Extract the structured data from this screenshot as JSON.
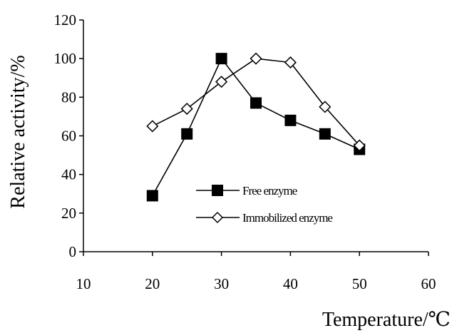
{
  "chart_data": {
    "type": "line",
    "xlabel": "Temperature/℃",
    "ylabel": "Relative activity/%",
    "xlim": [
      10,
      60
    ],
    "ylim": [
      0,
      120
    ],
    "x_ticks": [
      "10",
      "20",
      "30",
      "40",
      "50",
      "60"
    ],
    "y_ticks": [
      "0",
      "20",
      "40",
      "60",
      "80",
      "100",
      "120"
    ],
    "grid": false,
    "legend_position": "center",
    "series": [
      {
        "name": "Free enzyme",
        "marker": "filled-square",
        "color": "#000000",
        "x": [
          20,
          25,
          30,
          35,
          40,
          45,
          50
        ],
        "y": [
          29,
          61,
          100,
          77,
          68,
          61,
          53
        ]
      },
      {
        "name": "Immobilized enzyme",
        "marker": "open-diamond",
        "color": "#000000",
        "x": [
          20,
          25,
          30,
          35,
          40,
          45,
          50
        ],
        "y": [
          65,
          74,
          88,
          100,
          98,
          75,
          55
        ]
      }
    ]
  }
}
